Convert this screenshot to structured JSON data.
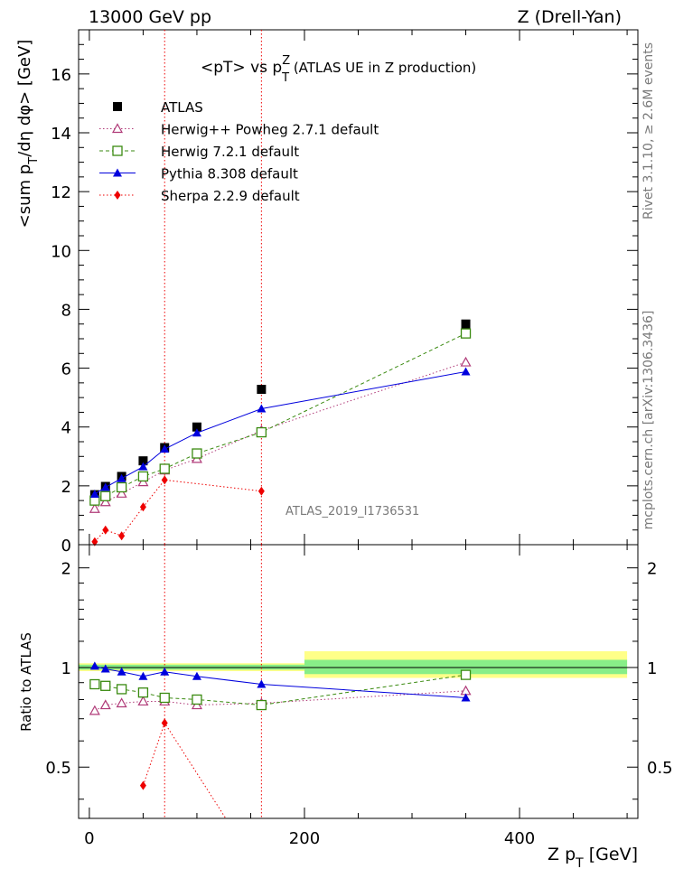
{
  "header": {
    "left": "13000 GeV pp",
    "right": "Z (Drell-Yan)"
  },
  "side_labels": {
    "rivet": "Rivet 3.1.10, ≥ 2.6M events",
    "mcplots": "mcplots.cern.ch [arXiv:1306.3436]"
  },
  "chart_data": [
    {
      "type": "scatter",
      "title_parts": {
        "a": "<pT> vs p",
        "sup": "Z",
        "sub": "T",
        "b": " (ATLAS UE in Z production)"
      },
      "ylabel_parts": {
        "a": "<sum p",
        "sub": "T",
        "b": "/dη dφ> [GeV]"
      },
      "xlabel_parts": {
        "a": "Z p",
        "sub": "T",
        "b": " [GeV]"
      },
      "watermark": "ATLAS_2019_I1736531",
      "xlim": [
        -10,
        510
      ],
      "ylim": [
        0,
        17.5
      ],
      "y_ticks": [
        0,
        2,
        4,
        6,
        8,
        10,
        12,
        14,
        16
      ],
      "x_ticks": [
        0,
        200,
        400
      ],
      "vlines_x": [
        70,
        160
      ],
      "legend_position": "top-left",
      "series": [
        {
          "name": "ATLAS",
          "color": "#000000",
          "marker": "square-filled",
          "line": "none",
          "x": [
            5,
            15,
            30,
            50,
            70,
            100,
            160,
            350
          ],
          "y": [
            1.7,
            1.98,
            2.32,
            2.85,
            3.3,
            4.0,
            5.28,
            7.5
          ]
        },
        {
          "name": "Herwig++ Powheg 2.7.1 default",
          "color": "#b03a78",
          "marker": "triangle-open",
          "line": "dotted",
          "x": [
            5,
            15,
            30,
            50,
            70,
            100,
            160,
            350
          ],
          "y": [
            1.22,
            1.45,
            1.74,
            2.13,
            2.53,
            2.92,
            3.88,
            6.2
          ]
        },
        {
          "name": "Herwig 7.2.1 default",
          "color": "#3a8a10",
          "marker": "square-open",
          "line": "dashed",
          "x": [
            5,
            15,
            30,
            50,
            70,
            100,
            160,
            350
          ],
          "y": [
            1.5,
            1.65,
            1.95,
            2.32,
            2.58,
            3.1,
            3.82,
            7.18
          ]
        },
        {
          "name": "Pythia 8.308 default",
          "color": "#0000dd",
          "marker": "triangle-filled",
          "line": "solid",
          "x": [
            5,
            15,
            30,
            50,
            70,
            100,
            160,
            350
          ],
          "y": [
            1.72,
            1.95,
            2.25,
            2.65,
            3.25,
            3.8,
            4.62,
            5.88
          ]
        },
        {
          "name": "Sherpa 2.2.9 default",
          "color": "#ee0000",
          "marker": "diamond-filled",
          "line": "dotted",
          "x": [
            5,
            15,
            30,
            50,
            70,
            160
          ],
          "y": [
            0.1,
            0.5,
            0.3,
            1.28,
            2.2,
            1.82
          ]
        }
      ]
    },
    {
      "type": "scatter",
      "ylabel": "Ratio to ATLAS",
      "xlim": [
        -10,
        510
      ],
      "ylim": [
        0.35,
        2.35
      ],
      "y_ticks": [
        0.5,
        1,
        2
      ],
      "x_ticks": [
        0,
        200,
        400
      ],
      "series": [
        {
          "name": "Herwig++ Powheg 2.7.1 default",
          "color": "#b03a78",
          "x": [
            5,
            15,
            30,
            50,
            70,
            100,
            160,
            350
          ],
          "y": [
            0.74,
            0.77,
            0.78,
            0.79,
            0.79,
            0.77,
            0.78,
            0.85
          ]
        },
        {
          "name": "Herwig 7.2.1 default",
          "color": "#3a8a10",
          "x": [
            5,
            15,
            30,
            50,
            70,
            100,
            160,
            350
          ],
          "y": [
            0.89,
            0.88,
            0.86,
            0.84,
            0.81,
            0.8,
            0.77,
            0.95
          ]
        },
        {
          "name": "Pythia 8.308 default",
          "color": "#0000dd",
          "x": [
            5,
            15,
            30,
            50,
            70,
            100,
            160,
            350
          ],
          "y": [
            1.01,
            0.99,
            0.97,
            0.94,
            0.97,
            0.94,
            0.89,
            0.81
          ]
        },
        {
          "name": "Sherpa 2.2.9 default",
          "color": "#ee0000",
          "x": [
            50,
            70,
            140
          ],
          "y": [
            0.44,
            0.68,
            0.3
          ]
        }
      ]
    }
  ]
}
